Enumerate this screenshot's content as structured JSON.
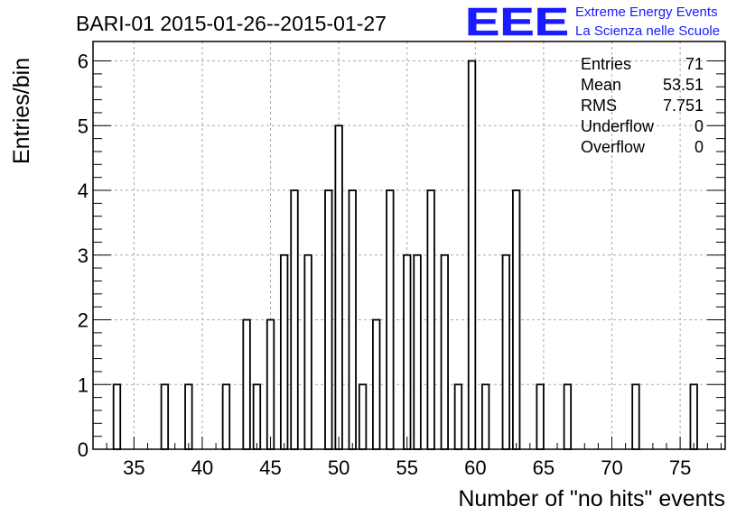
{
  "header": {
    "title": "BARI-01 2015-01-26--2015-01-27",
    "logo_text": "EEE",
    "logo_line1": "Extreme Energy Events",
    "logo_line2": "La Scienza nelle Scuole",
    "logo_color": "#1a1aff"
  },
  "stats": [
    {
      "label": "Entries",
      "value": "71"
    },
    {
      "label": "Mean",
      "value": "53.51"
    },
    {
      "label": "RMS",
      "value": "7.751"
    },
    {
      "label": "Underflow",
      "value": "0"
    },
    {
      "label": "Overflow",
      "value": "0"
    }
  ],
  "chart_data": {
    "type": "bar",
    "title": "BARI-01 2015-01-26--2015-01-27",
    "xlabel": "Number of \"no hits\" events",
    "ylabel": "Entries/bin",
    "xlim": [
      32,
      78.3
    ],
    "ylim": [
      0,
      6.3
    ],
    "bin_width": 0.5,
    "grid": true,
    "x_ticks": [
      35,
      40,
      45,
      50,
      55,
      60,
      65,
      70,
      75
    ],
    "y_ticks": [
      0,
      1,
      2,
      3,
      4,
      5,
      6
    ],
    "bins": [
      {
        "x": 33.75,
        "y": 1
      },
      {
        "x": 37.25,
        "y": 1
      },
      {
        "x": 39.0,
        "y": 1
      },
      {
        "x": 41.75,
        "y": 1
      },
      {
        "x": 43.25,
        "y": 2
      },
      {
        "x": 44.0,
        "y": 1
      },
      {
        "x": 45.0,
        "y": 2
      },
      {
        "x": 46.0,
        "y": 3
      },
      {
        "x": 46.75,
        "y": 4
      },
      {
        "x": 47.75,
        "y": 3
      },
      {
        "x": 49.25,
        "y": 4
      },
      {
        "x": 50.0,
        "y": 5
      },
      {
        "x": 51.0,
        "y": 4
      },
      {
        "x": 51.75,
        "y": 1
      },
      {
        "x": 52.75,
        "y": 2
      },
      {
        "x": 53.75,
        "y": 4
      },
      {
        "x": 55.0,
        "y": 3
      },
      {
        "x": 55.75,
        "y": 3
      },
      {
        "x": 56.75,
        "y": 4
      },
      {
        "x": 57.75,
        "y": 3
      },
      {
        "x": 58.75,
        "y": 1
      },
      {
        "x": 59.75,
        "y": 6
      },
      {
        "x": 60.75,
        "y": 1
      },
      {
        "x": 62.25,
        "y": 3
      },
      {
        "x": 63.0,
        "y": 4
      },
      {
        "x": 64.75,
        "y": 1
      },
      {
        "x": 66.75,
        "y": 1
      },
      {
        "x": 71.75,
        "y": 1
      },
      {
        "x": 76.0,
        "y": 1
      }
    ]
  }
}
